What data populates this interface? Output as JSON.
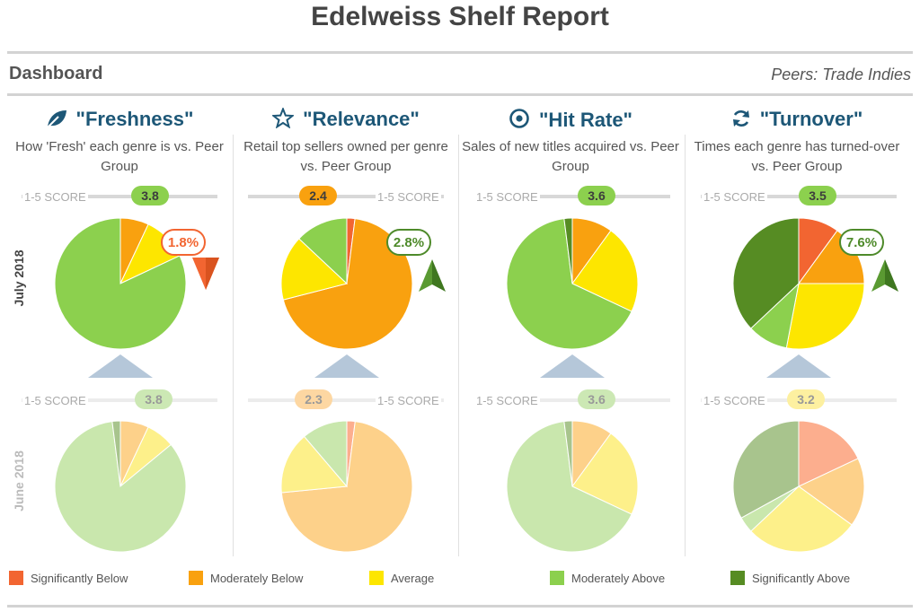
{
  "title": "Edelweiss Shelf Report",
  "dashboard_label": "Dashboard",
  "peers_label": "Peers: Trade Indies",
  "period_current": "July 2018",
  "period_prior": "June 2018",
  "score_label": "1-5 SCORE",
  "colors": {
    "sig_below": "#f26531",
    "mod_below": "#f9a10f",
    "average": "#fde600",
    "mod_above": "#8cd04e",
    "sig_above": "#568c23",
    "up_arrow": "#4e8a2a",
    "down_arrow": "#f26531",
    "neutral_arrow": "#b5c7d9"
  },
  "metrics": [
    {
      "name": "\"Freshness\"",
      "icon": "leaf-icon",
      "description": "How 'Fresh' each genre is vs. Peer Group",
      "score_current": "3.8",
      "score_prior": "3.8",
      "change": "1.8%",
      "trend": "down"
    },
    {
      "name": "\"Relevance\"",
      "icon": "star-icon",
      "description": "Retail top sellers owned per genre vs. Peer Group",
      "score_current": "2.4",
      "score_prior": "2.3",
      "change": "2.8%",
      "trend": "up"
    },
    {
      "name": "\"Hit Rate\"",
      "icon": "target-icon",
      "description": "Sales of new titles acquired vs. Peer Group",
      "score_current": "3.6",
      "score_prior": "3.6",
      "change": "",
      "trend": "flat"
    },
    {
      "name": "\"Turnover\"",
      "icon": "refresh-icon",
      "description": "Times each genre has turned-over vs. Peer Group",
      "score_current": "3.5",
      "score_prior": "3.2",
      "change": "7.6%",
      "trend": "up"
    }
  ],
  "legend": [
    "Significantly Below",
    "Moderately Below",
    "Average",
    "Moderately Above",
    "Significantly Above"
  ],
  "chart_data": {
    "type": "pie",
    "categories": [
      "Significantly Below",
      "Moderately Below",
      "Average",
      "Moderately Above",
      "Significantly Above"
    ],
    "charts": [
      {
        "metric": "Freshness",
        "period": "July 2018",
        "values": [
          0,
          7,
          11,
          82,
          0
        ]
      },
      {
        "metric": "Relevance",
        "period": "July 2018",
        "values": [
          2,
          69,
          16,
          13,
          0
        ]
      },
      {
        "metric": "Hit Rate",
        "period": "July 2018",
        "values": [
          0,
          10,
          22,
          66,
          2
        ]
      },
      {
        "metric": "Turnover",
        "period": "July 2018",
        "values": [
          10,
          15,
          28,
          10,
          37
        ]
      },
      {
        "metric": "Freshness",
        "period": "June 2018",
        "values": [
          0,
          7,
          7,
          84,
          2
        ]
      },
      {
        "metric": "Relevance",
        "period": "June 2018",
        "values": [
          2,
          70,
          15,
          11,
          0
        ]
      },
      {
        "metric": "Hit Rate",
        "period": "June 2018",
        "values": [
          0,
          10,
          22,
          66,
          2
        ]
      },
      {
        "metric": "Turnover",
        "period": "June 2018",
        "values": [
          18,
          17,
          28,
          4,
          33
        ]
      }
    ]
  }
}
